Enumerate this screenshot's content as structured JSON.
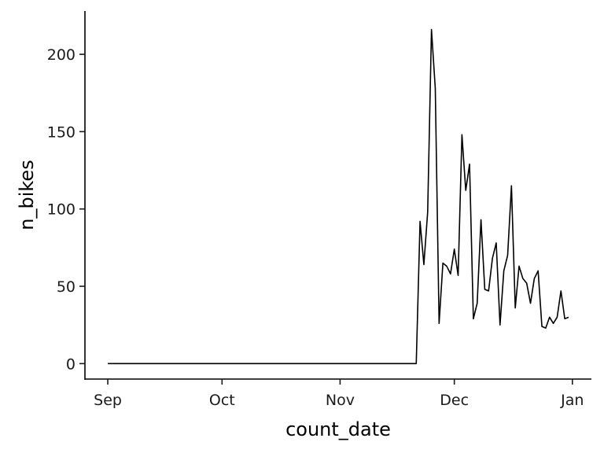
{
  "chart_data": {
    "type": "line",
    "title": "",
    "xlabel": "count_date",
    "ylabel": "n_bikes",
    "x_tick_labels": [
      "Sep",
      "Oct",
      "Nov",
      "Dec",
      "Jan"
    ],
    "x_tick_dates": [
      "2019-09-01",
      "2019-10-01",
      "2019-11-01",
      "2019-12-01",
      "2020-01-01"
    ],
    "xlim": [
      "2019-08-26",
      "2020-01-06"
    ],
    "y_ticks": [
      0,
      50,
      100,
      150,
      200
    ],
    "ylim": [
      -10,
      228
    ],
    "grid": false,
    "series": [
      {
        "color": "#000000",
        "x": [
          "2019-09-01",
          "2019-09-15",
          "2019-10-01",
          "2019-10-15",
          "2019-11-01",
          "2019-11-15",
          "2019-11-21",
          "2019-11-22",
          "2019-11-23",
          "2019-11-24",
          "2019-11-25",
          "2019-11-26",
          "2019-11-27",
          "2019-11-28",
          "2019-11-29",
          "2019-11-30",
          "2019-12-01",
          "2019-12-02",
          "2019-12-03",
          "2019-12-04",
          "2019-12-05",
          "2019-12-06",
          "2019-12-07",
          "2019-12-08",
          "2019-12-09",
          "2019-12-10",
          "2019-12-11",
          "2019-12-12",
          "2019-12-13",
          "2019-12-14",
          "2019-12-15",
          "2019-12-16",
          "2019-12-17",
          "2019-12-18",
          "2019-12-19",
          "2019-12-20",
          "2019-12-21",
          "2019-12-22",
          "2019-12-23",
          "2019-12-24",
          "2019-12-25",
          "2019-12-26",
          "2019-12-27",
          "2019-12-28",
          "2019-12-29",
          "2019-12-30",
          "2019-12-31"
        ],
        "y": [
          0,
          0,
          0,
          0,
          0,
          0,
          0,
          92,
          64,
          98,
          216,
          178,
          26,
          65,
          63,
          58,
          74,
          57,
          148,
          112,
          129,
          29,
          39,
          93,
          48,
          47,
          68,
          78,
          25,
          60,
          70,
          115,
          36,
          63,
          55,
          52,
          39,
          55,
          60,
          24,
          23,
          30,
          26,
          30,
          47,
          29,
          30
        ]
      }
    ]
  }
}
